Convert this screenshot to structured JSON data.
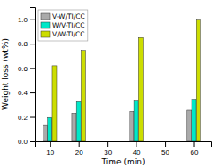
{
  "chart_data": {
    "type": "bar",
    "xlabel": "Time (min)",
    "ylabel": "Weight loss (wt%)",
    "x": [
      10,
      20,
      40,
      60
    ],
    "series": [
      {
        "name": "V-W/TI/CC",
        "color": "#aaaaaa",
        "values": [
          0.13,
          0.23,
          0.245,
          0.255
        ]
      },
      {
        "name": "W/V-TI/CC",
        "color": "#00e8c8",
        "values": [
          0.195,
          0.325,
          0.33,
          0.345
        ]
      },
      {
        "name": "V/W-TI/CC",
        "color": "#ccdd00",
        "values": [
          0.62,
          0.745,
          0.85,
          1.0
        ]
      }
    ],
    "xlim": [
      5,
      66
    ],
    "xticks": [
      10,
      20,
      30,
      40,
      50,
      60
    ],
    "ylim": [
      0,
      1.1
    ],
    "yticks": [
      {
        "value": 0.0,
        "label": "0.0"
      },
      0.2,
      0.4,
      0.6,
      0.8,
      {
        "value": 1.0,
        "label": "1.0"
      }
    ],
    "legend": "upper left",
    "grid": false
  }
}
